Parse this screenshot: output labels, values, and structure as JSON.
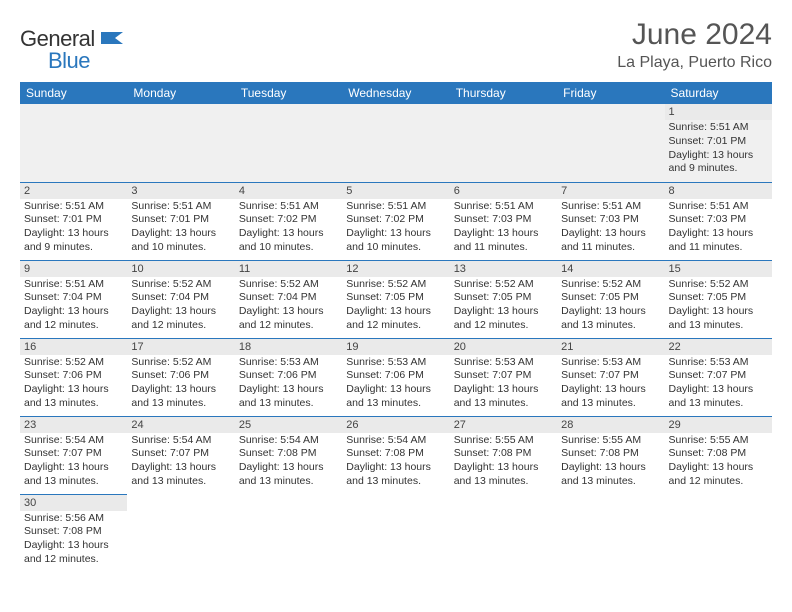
{
  "brand": {
    "general": "General",
    "blue": "Blue",
    "flag_color": "#2a77bd"
  },
  "title": {
    "month": "June 2024",
    "location": "La Playa, Puerto Rico"
  },
  "colors": {
    "header_bg": "#2a77bd",
    "header_text": "#ffffff",
    "border": "#2a77bd",
    "band_bg": "#eaeaea",
    "first_row_bg": "#f0f0f0"
  },
  "weekdays": [
    "Sunday",
    "Monday",
    "Tuesday",
    "Wednesday",
    "Thursday",
    "Friday",
    "Saturday"
  ],
  "weeks": [
    [
      null,
      null,
      null,
      null,
      null,
      null,
      {
        "d": "1",
        "sr": "5:51 AM",
        "ss": "7:01 PM",
        "dl": "13 hours and 9 minutes."
      }
    ],
    [
      {
        "d": "2",
        "sr": "5:51 AM",
        "ss": "7:01 PM",
        "dl": "13 hours and 9 minutes."
      },
      {
        "d": "3",
        "sr": "5:51 AM",
        "ss": "7:01 PM",
        "dl": "13 hours and 10 minutes."
      },
      {
        "d": "4",
        "sr": "5:51 AM",
        "ss": "7:02 PM",
        "dl": "13 hours and 10 minutes."
      },
      {
        "d": "5",
        "sr": "5:51 AM",
        "ss": "7:02 PM",
        "dl": "13 hours and 10 minutes."
      },
      {
        "d": "6",
        "sr": "5:51 AM",
        "ss": "7:03 PM",
        "dl": "13 hours and 11 minutes."
      },
      {
        "d": "7",
        "sr": "5:51 AM",
        "ss": "7:03 PM",
        "dl": "13 hours and 11 minutes."
      },
      {
        "d": "8",
        "sr": "5:51 AM",
        "ss": "7:03 PM",
        "dl": "13 hours and 11 minutes."
      }
    ],
    [
      {
        "d": "9",
        "sr": "5:51 AM",
        "ss": "7:04 PM",
        "dl": "13 hours and 12 minutes."
      },
      {
        "d": "10",
        "sr": "5:52 AM",
        "ss": "7:04 PM",
        "dl": "13 hours and 12 minutes."
      },
      {
        "d": "11",
        "sr": "5:52 AM",
        "ss": "7:04 PM",
        "dl": "13 hours and 12 minutes."
      },
      {
        "d": "12",
        "sr": "5:52 AM",
        "ss": "7:05 PM",
        "dl": "13 hours and 12 minutes."
      },
      {
        "d": "13",
        "sr": "5:52 AM",
        "ss": "7:05 PM",
        "dl": "13 hours and 12 minutes."
      },
      {
        "d": "14",
        "sr": "5:52 AM",
        "ss": "7:05 PM",
        "dl": "13 hours and 13 minutes."
      },
      {
        "d": "15",
        "sr": "5:52 AM",
        "ss": "7:05 PM",
        "dl": "13 hours and 13 minutes."
      }
    ],
    [
      {
        "d": "16",
        "sr": "5:52 AM",
        "ss": "7:06 PM",
        "dl": "13 hours and 13 minutes."
      },
      {
        "d": "17",
        "sr": "5:52 AM",
        "ss": "7:06 PM",
        "dl": "13 hours and 13 minutes."
      },
      {
        "d": "18",
        "sr": "5:53 AM",
        "ss": "7:06 PM",
        "dl": "13 hours and 13 minutes."
      },
      {
        "d": "19",
        "sr": "5:53 AM",
        "ss": "7:06 PM",
        "dl": "13 hours and 13 minutes."
      },
      {
        "d": "20",
        "sr": "5:53 AM",
        "ss": "7:07 PM",
        "dl": "13 hours and 13 minutes."
      },
      {
        "d": "21",
        "sr": "5:53 AM",
        "ss": "7:07 PM",
        "dl": "13 hours and 13 minutes."
      },
      {
        "d": "22",
        "sr": "5:53 AM",
        "ss": "7:07 PM",
        "dl": "13 hours and 13 minutes."
      }
    ],
    [
      {
        "d": "23",
        "sr": "5:54 AM",
        "ss": "7:07 PM",
        "dl": "13 hours and 13 minutes."
      },
      {
        "d": "24",
        "sr": "5:54 AM",
        "ss": "7:07 PM",
        "dl": "13 hours and 13 minutes."
      },
      {
        "d": "25",
        "sr": "5:54 AM",
        "ss": "7:08 PM",
        "dl": "13 hours and 13 minutes."
      },
      {
        "d": "26",
        "sr": "5:54 AM",
        "ss": "7:08 PM",
        "dl": "13 hours and 13 minutes."
      },
      {
        "d": "27",
        "sr": "5:55 AM",
        "ss": "7:08 PM",
        "dl": "13 hours and 13 minutes."
      },
      {
        "d": "28",
        "sr": "5:55 AM",
        "ss": "7:08 PM",
        "dl": "13 hours and 13 minutes."
      },
      {
        "d": "29",
        "sr": "5:55 AM",
        "ss": "7:08 PM",
        "dl": "13 hours and 12 minutes."
      }
    ],
    [
      {
        "d": "30",
        "sr": "5:56 AM",
        "ss": "7:08 PM",
        "dl": "13 hours and 12 minutes."
      },
      null,
      null,
      null,
      null,
      null,
      null
    ]
  ],
  "labels": {
    "sunrise": "Sunrise:",
    "sunset": "Sunset:",
    "daylight": "Daylight:"
  }
}
